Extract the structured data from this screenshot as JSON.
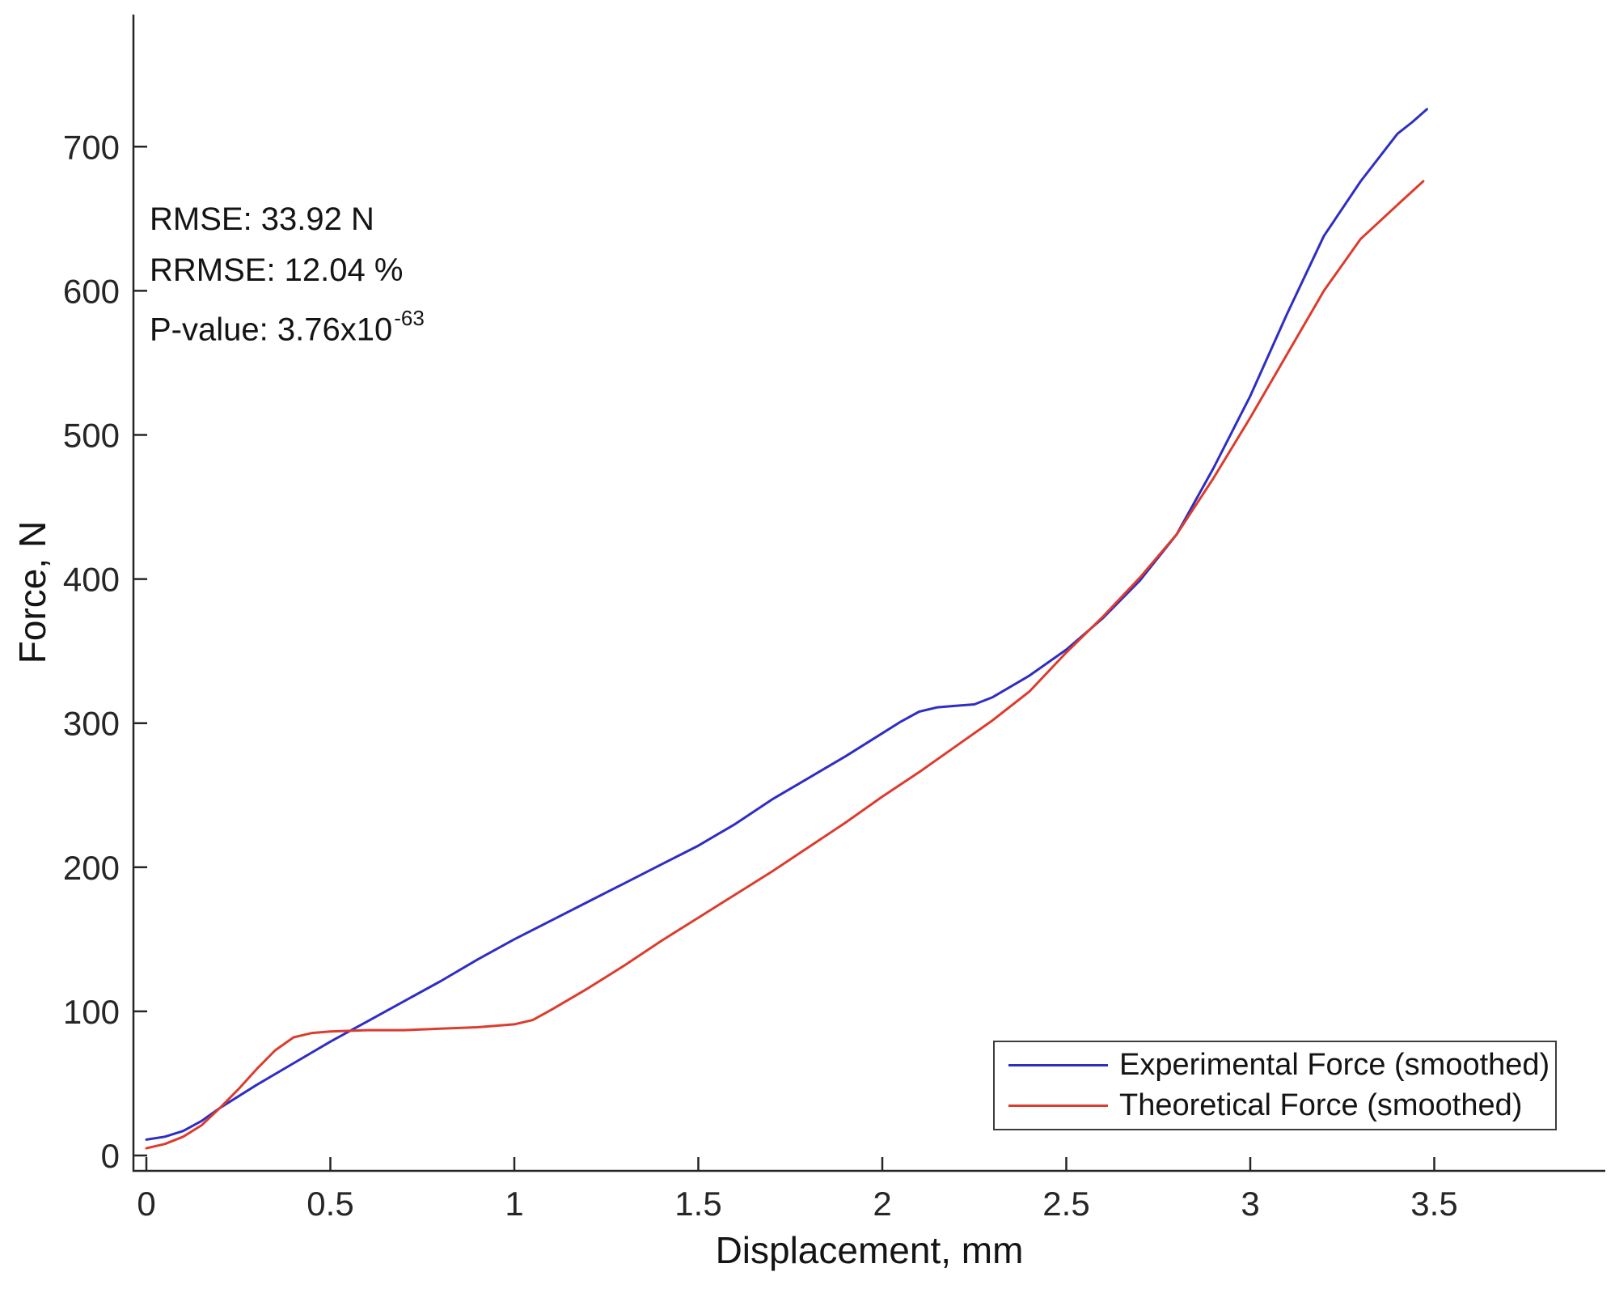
{
  "annotations": {
    "rmse": "RMSE: 33.92 N",
    "rrmse": "RRMSE: 12.04 %",
    "pvalue_label": "P-value: ",
    "pvalue_base": "3.76x10",
    "pvalue_exponent": "-63"
  },
  "colors": {
    "background": "#ffffff",
    "axis": "#262626",
    "text": "#141414",
    "legend_border": "#3c3c3c",
    "experimental_blue": "#2e2ec4",
    "theoretical_red": "#dc3c2e"
  },
  "chart_data": {
    "type": "line",
    "title": "",
    "xlabel": "Displacement, mm",
    "ylabel": "Force, N",
    "xlim": [
      0,
      3.97
    ],
    "ylim": [
      0,
      790
    ],
    "x_ticks": [
      "0",
      "0.5",
      "1",
      "1.5",
      "2",
      "2.5",
      "3",
      "3.5"
    ],
    "x_tick_values": [
      0,
      0.5,
      1,
      1.5,
      2,
      2.5,
      3,
      3.5
    ],
    "y_ticks": [
      "0",
      "100",
      "200",
      "300",
      "400",
      "500",
      "600",
      "700"
    ],
    "y_tick_values": [
      0,
      100,
      200,
      300,
      400,
      500,
      600,
      700
    ],
    "grid": false,
    "legend_position": "lower right",
    "stats": {
      "rmse_n": 33.92,
      "rrmse_pct": 12.04,
      "p_value": "3.76e-63"
    },
    "series": [
      {
        "name": "Experimental Force (smoothed)",
        "color": "#2e2ec4",
        "points": [
          [
            0,
            11
          ],
          [
            0.05,
            13
          ],
          [
            0.1,
            17
          ],
          [
            0.15,
            24
          ],
          [
            0.2,
            33
          ],
          [
            0.3,
            49
          ],
          [
            0.4,
            64
          ],
          [
            0.5,
            79
          ],
          [
            0.6,
            93
          ],
          [
            0.7,
            107
          ],
          [
            0.8,
            121
          ],
          [
            0.9,
            136
          ],
          [
            1.0,
            150
          ],
          [
            1.1,
            163
          ],
          [
            1.2,
            176
          ],
          [
            1.3,
            189
          ],
          [
            1.4,
            202
          ],
          [
            1.5,
            215
          ],
          [
            1.6,
            230
          ],
          [
            1.7,
            247
          ],
          [
            1.8,
            262
          ],
          [
            1.9,
            277
          ],
          [
            2.0,
            293
          ],
          [
            2.05,
            301
          ],
          [
            2.1,
            308
          ],
          [
            2.15,
            311
          ],
          [
            2.2,
            312
          ],
          [
            2.25,
            313
          ],
          [
            2.3,
            318
          ],
          [
            2.4,
            333
          ],
          [
            2.5,
            351
          ],
          [
            2.6,
            373
          ],
          [
            2.7,
            399
          ],
          [
            2.8,
            431
          ],
          [
            2.9,
            477
          ],
          [
            3.0,
            527
          ],
          [
            3.1,
            584
          ],
          [
            3.2,
            638
          ],
          [
            3.3,
            676
          ],
          [
            3.4,
            709
          ],
          [
            3.44,
            717
          ],
          [
            3.48,
            726
          ]
        ]
      },
      {
        "name": "Theoretical Force (smoothed)",
        "color": "#dc3c2e",
        "points": [
          [
            0,
            5
          ],
          [
            0.05,
            8
          ],
          [
            0.1,
            13
          ],
          [
            0.15,
            21
          ],
          [
            0.2,
            33
          ],
          [
            0.25,
            46
          ],
          [
            0.3,
            60
          ],
          [
            0.35,
            73
          ],
          [
            0.4,
            82
          ],
          [
            0.45,
            85
          ],
          [
            0.5,
            86
          ],
          [
            0.6,
            87
          ],
          [
            0.7,
            87
          ],
          [
            0.8,
            88
          ],
          [
            0.9,
            89
          ],
          [
            1.0,
            91
          ],
          [
            1.05,
            94
          ],
          [
            1.1,
            101
          ],
          [
            1.2,
            116
          ],
          [
            1.3,
            132
          ],
          [
            1.4,
            149
          ],
          [
            1.5,
            165
          ],
          [
            1.6,
            181
          ],
          [
            1.7,
            197
          ],
          [
            1.8,
            214
          ],
          [
            1.9,
            231
          ],
          [
            2.0,
            249
          ],
          [
            2.1,
            266
          ],
          [
            2.2,
            284
          ],
          [
            2.3,
            302
          ],
          [
            2.4,
            322
          ],
          [
            2.5,
            349
          ],
          [
            2.6,
            374
          ],
          [
            2.7,
            401
          ],
          [
            2.8,
            431
          ],
          [
            2.9,
            470
          ],
          [
            3.0,
            512
          ],
          [
            3.1,
            556
          ],
          [
            3.2,
            600
          ],
          [
            3.3,
            636
          ],
          [
            3.41,
            662
          ],
          [
            3.47,
            676
          ]
        ]
      }
    ]
  }
}
